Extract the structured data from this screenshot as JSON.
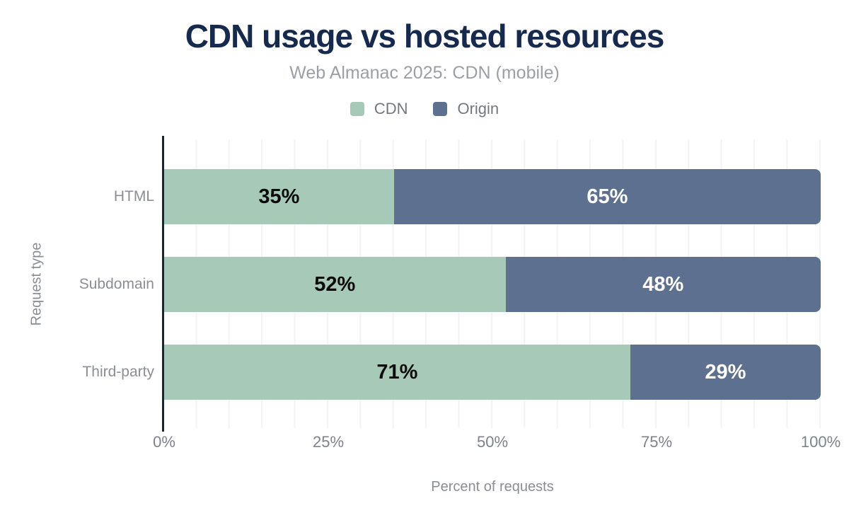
{
  "title": "CDN usage vs hosted resources",
  "subtitle": "Web Almanac 2025: CDN (mobile)",
  "legend": [
    {
      "label": "CDN",
      "color": "#a7c9b7"
    },
    {
      "label": "Origin",
      "color": "#5e7090"
    }
  ],
  "colors": {
    "title_text": "#152a4e",
    "muted_text": "#8a8d94",
    "axis_line": "#172440",
    "gridline": "#f3f3f5",
    "cdn_fill": "#a7c9b7",
    "origin_fill": "#5e7090",
    "label_on_cdn": "#0b0b0c",
    "label_on_origin": "#ffffff"
  },
  "chart_data": {
    "type": "bar",
    "orientation": "horizontal",
    "stacked": true,
    "title": "CDN usage vs hosted resources",
    "subtitle": "Web Almanac 2025: CDN (mobile)",
    "categories": [
      "HTML",
      "Subdomain",
      "Third-party"
    ],
    "series": [
      {
        "name": "CDN",
        "values": [
          35,
          52,
          71
        ]
      },
      {
        "name": "Origin",
        "values": [
          65,
          48,
          29
        ]
      }
    ],
    "bar_labels": [
      [
        "35%",
        "65%"
      ],
      [
        "52%",
        "48%"
      ],
      [
        "71%",
        "29%"
      ]
    ],
    "xlabel": "Percent of requests",
    "ylabel": "Request type",
    "xlim": [
      0,
      100
    ],
    "x_ticks": [
      "0%",
      "25%",
      "50%",
      "75%",
      "100%"
    ],
    "x_tick_positions": [
      0,
      25,
      50,
      75,
      100
    ],
    "grid_interval_percent": 5,
    "grid": "vertical-only",
    "legend_position": "top"
  }
}
